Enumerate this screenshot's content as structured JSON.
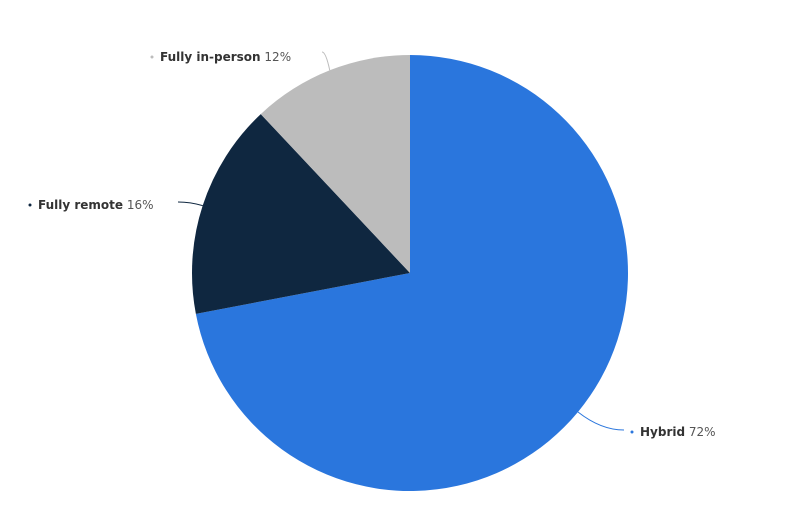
{
  "chart_data": {
    "type": "pie",
    "categories": [
      "Hybrid",
      "Fully remote",
      "Fully in-person"
    ],
    "values": [
      72,
      16,
      12
    ],
    "value_labels": [
      "72%",
      "16%",
      "12%"
    ],
    "colors": [
      "#2a76dd",
      "#0f2740",
      "#bcbcbc"
    ]
  }
}
